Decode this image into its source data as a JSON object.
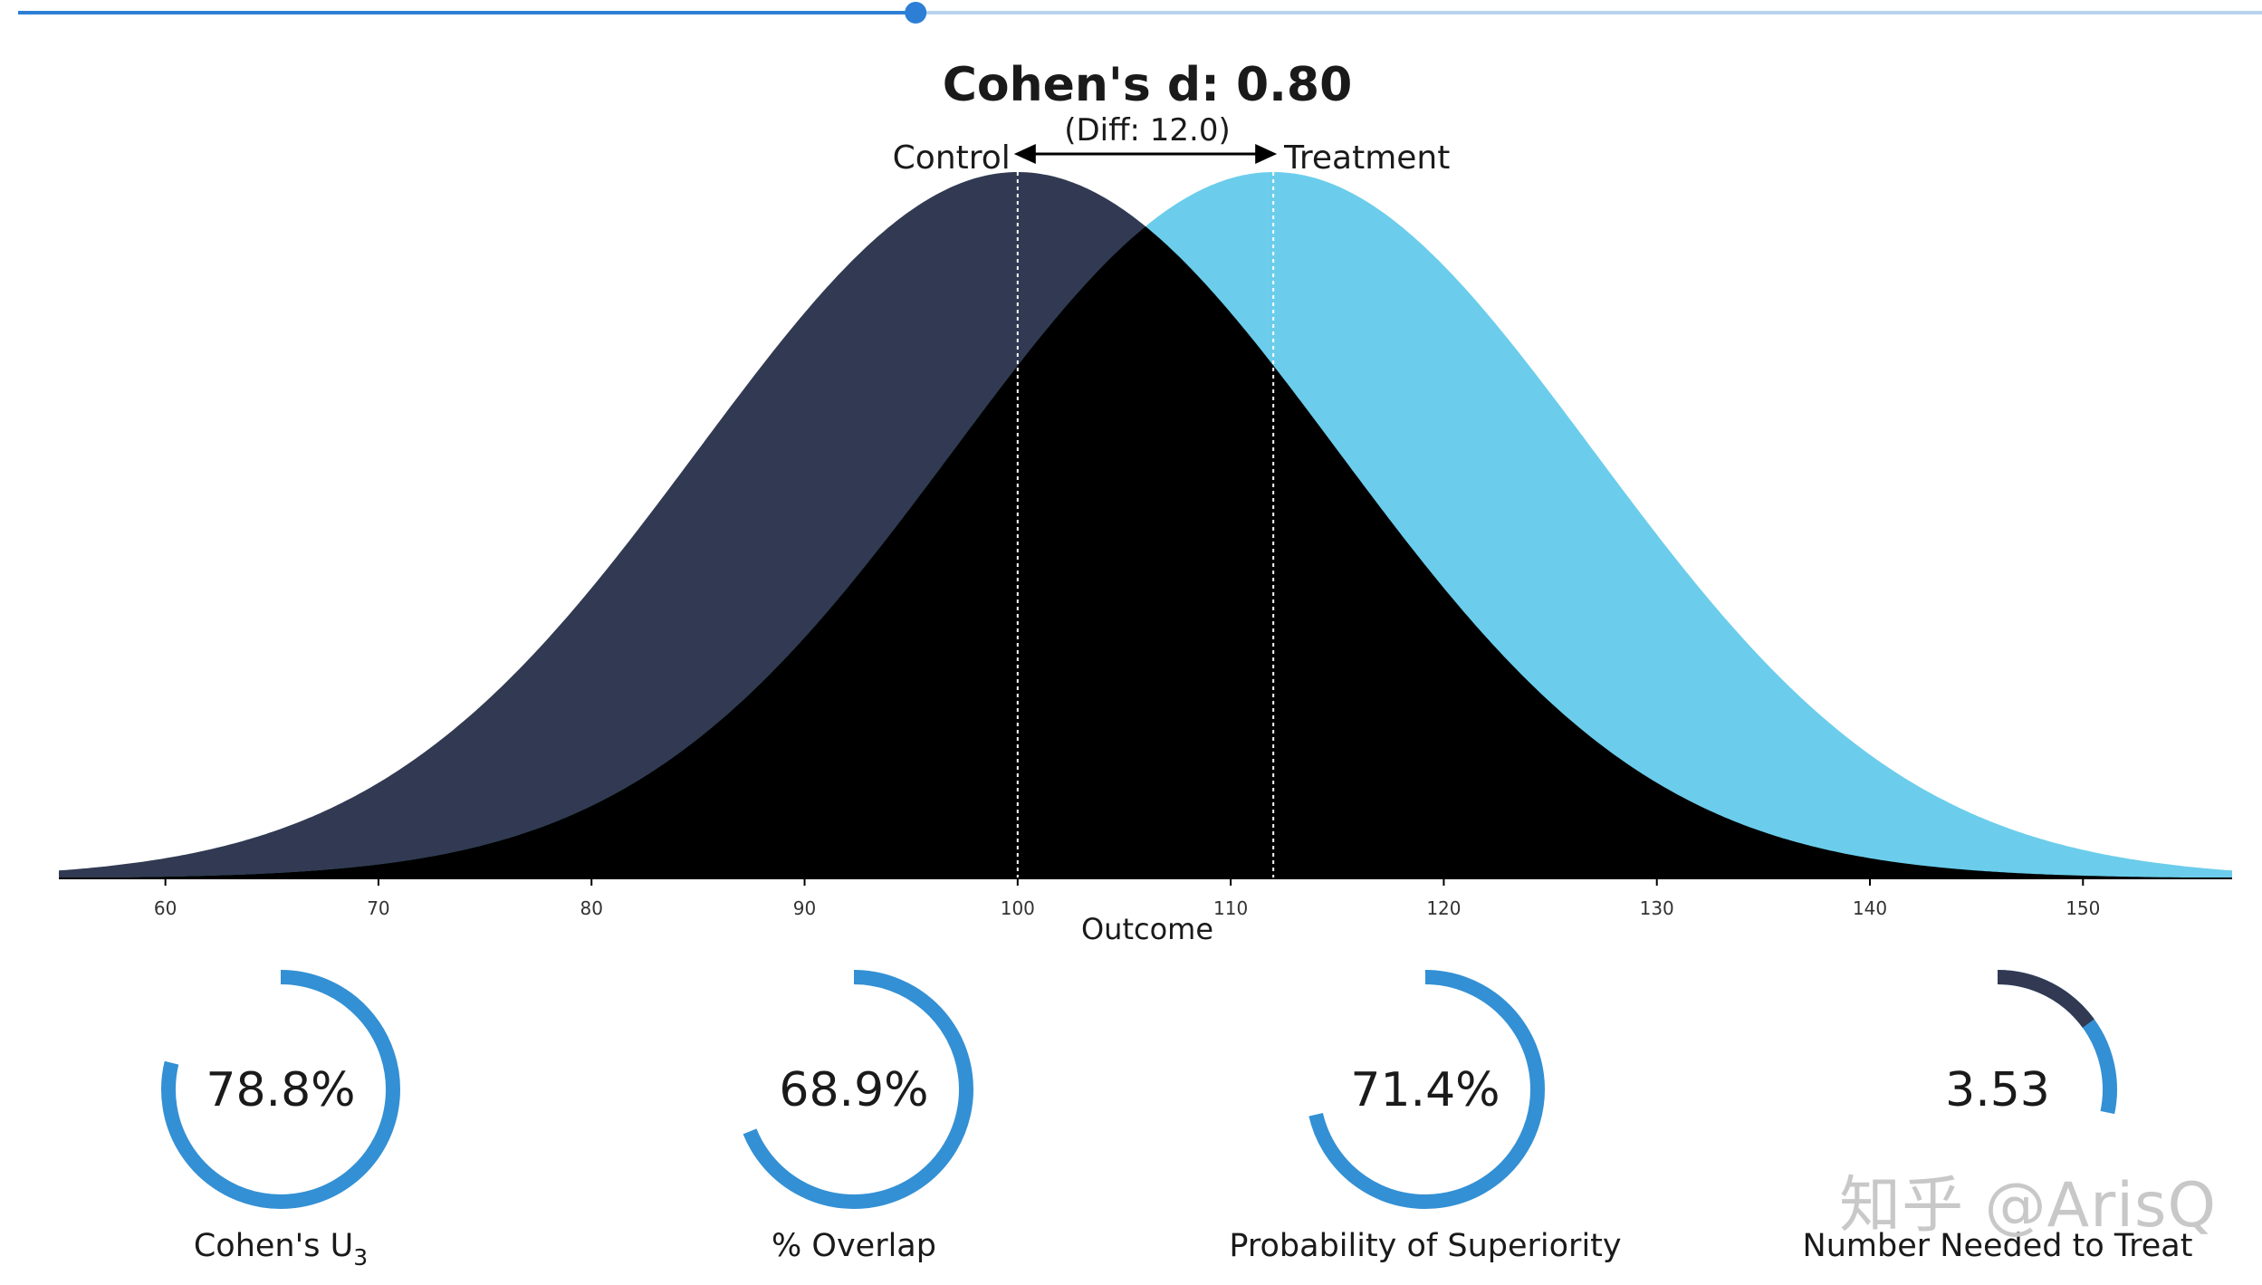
{
  "title": "Cohen's d: 0.80",
  "subtitle": "(Diff: 12.0)",
  "groups": {
    "control": "Control",
    "treatment": "Treatment"
  },
  "slider": {
    "value_fraction": 0.4
  },
  "colors": {
    "slider_active": "#2d7fd6",
    "slider_inactive": "#b9d3ef",
    "control": "#313a52",
    "treatment": "#6bcdeb",
    "overlap": "#000000",
    "donut": "#3390d4",
    "donut_dark": "#313a52"
  },
  "chart_data": {
    "type": "area",
    "xlabel": "Outcome",
    "xlim": [
      55,
      157
    ],
    "xticks": [
      60,
      70,
      80,
      90,
      100,
      110,
      120,
      130,
      140,
      150
    ],
    "series": [
      {
        "name": "Control",
        "mean": 100,
        "sd": 15
      },
      {
        "name": "Treatment",
        "mean": 112,
        "sd": 15
      }
    ],
    "mean_difference": 12.0,
    "cohens_d": 0.8
  },
  "metrics": [
    {
      "value": "78.8%",
      "fraction": 0.788,
      "label_main": "Cohen's U",
      "label_sub": "3"
    },
    {
      "value": "68.9%",
      "fraction": 0.689,
      "label_main": "% Overlap",
      "label_sub": ""
    },
    {
      "value": "71.4%",
      "fraction": 0.714,
      "label_main": "Probability of Superiority",
      "label_sub": ""
    },
    {
      "value": "3.53",
      "fraction": 0.283,
      "label_main": "Number Needed to Treat",
      "label_sub": ""
    }
  ],
  "watermark": "知乎 @ArisQ"
}
